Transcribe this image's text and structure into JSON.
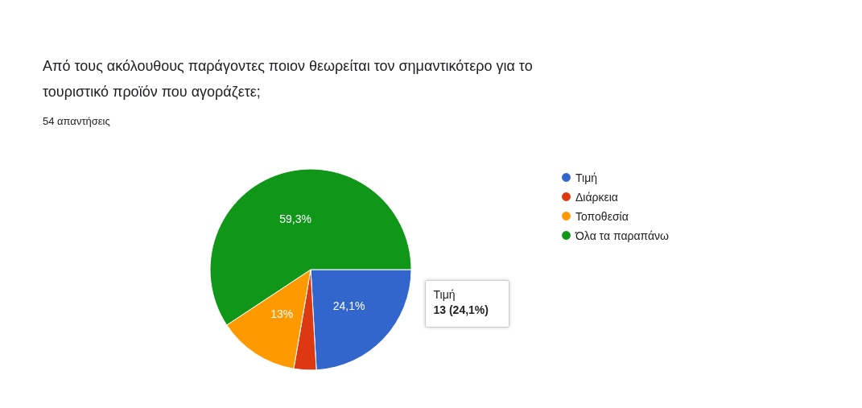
{
  "chart_data": {
    "type": "pie",
    "title": "Από τους ακόλουθους παράγοντες ποιον θεωρείται τον σημαντικότερο για το\nτουριστικό προϊόν που αγοράζετε;",
    "subtitle": "54 απαντήσεις",
    "categories": [
      "Τιμή",
      "Διάρκεια",
      "Τοποθεσία",
      "Όλα τα παραπάνω"
    ],
    "values": [
      24.1,
      3.6,
      13,
      59.3
    ],
    "colors": [
      "#3366cc",
      "#dc3912",
      "#ff9900",
      "#109618"
    ],
    "value_labels": [
      "24,1%",
      null,
      "13%",
      "59,3%"
    ],
    "annotations": [
      "Τιμή",
      "13 (24,1%)"
    ],
    "legend": "right"
  }
}
